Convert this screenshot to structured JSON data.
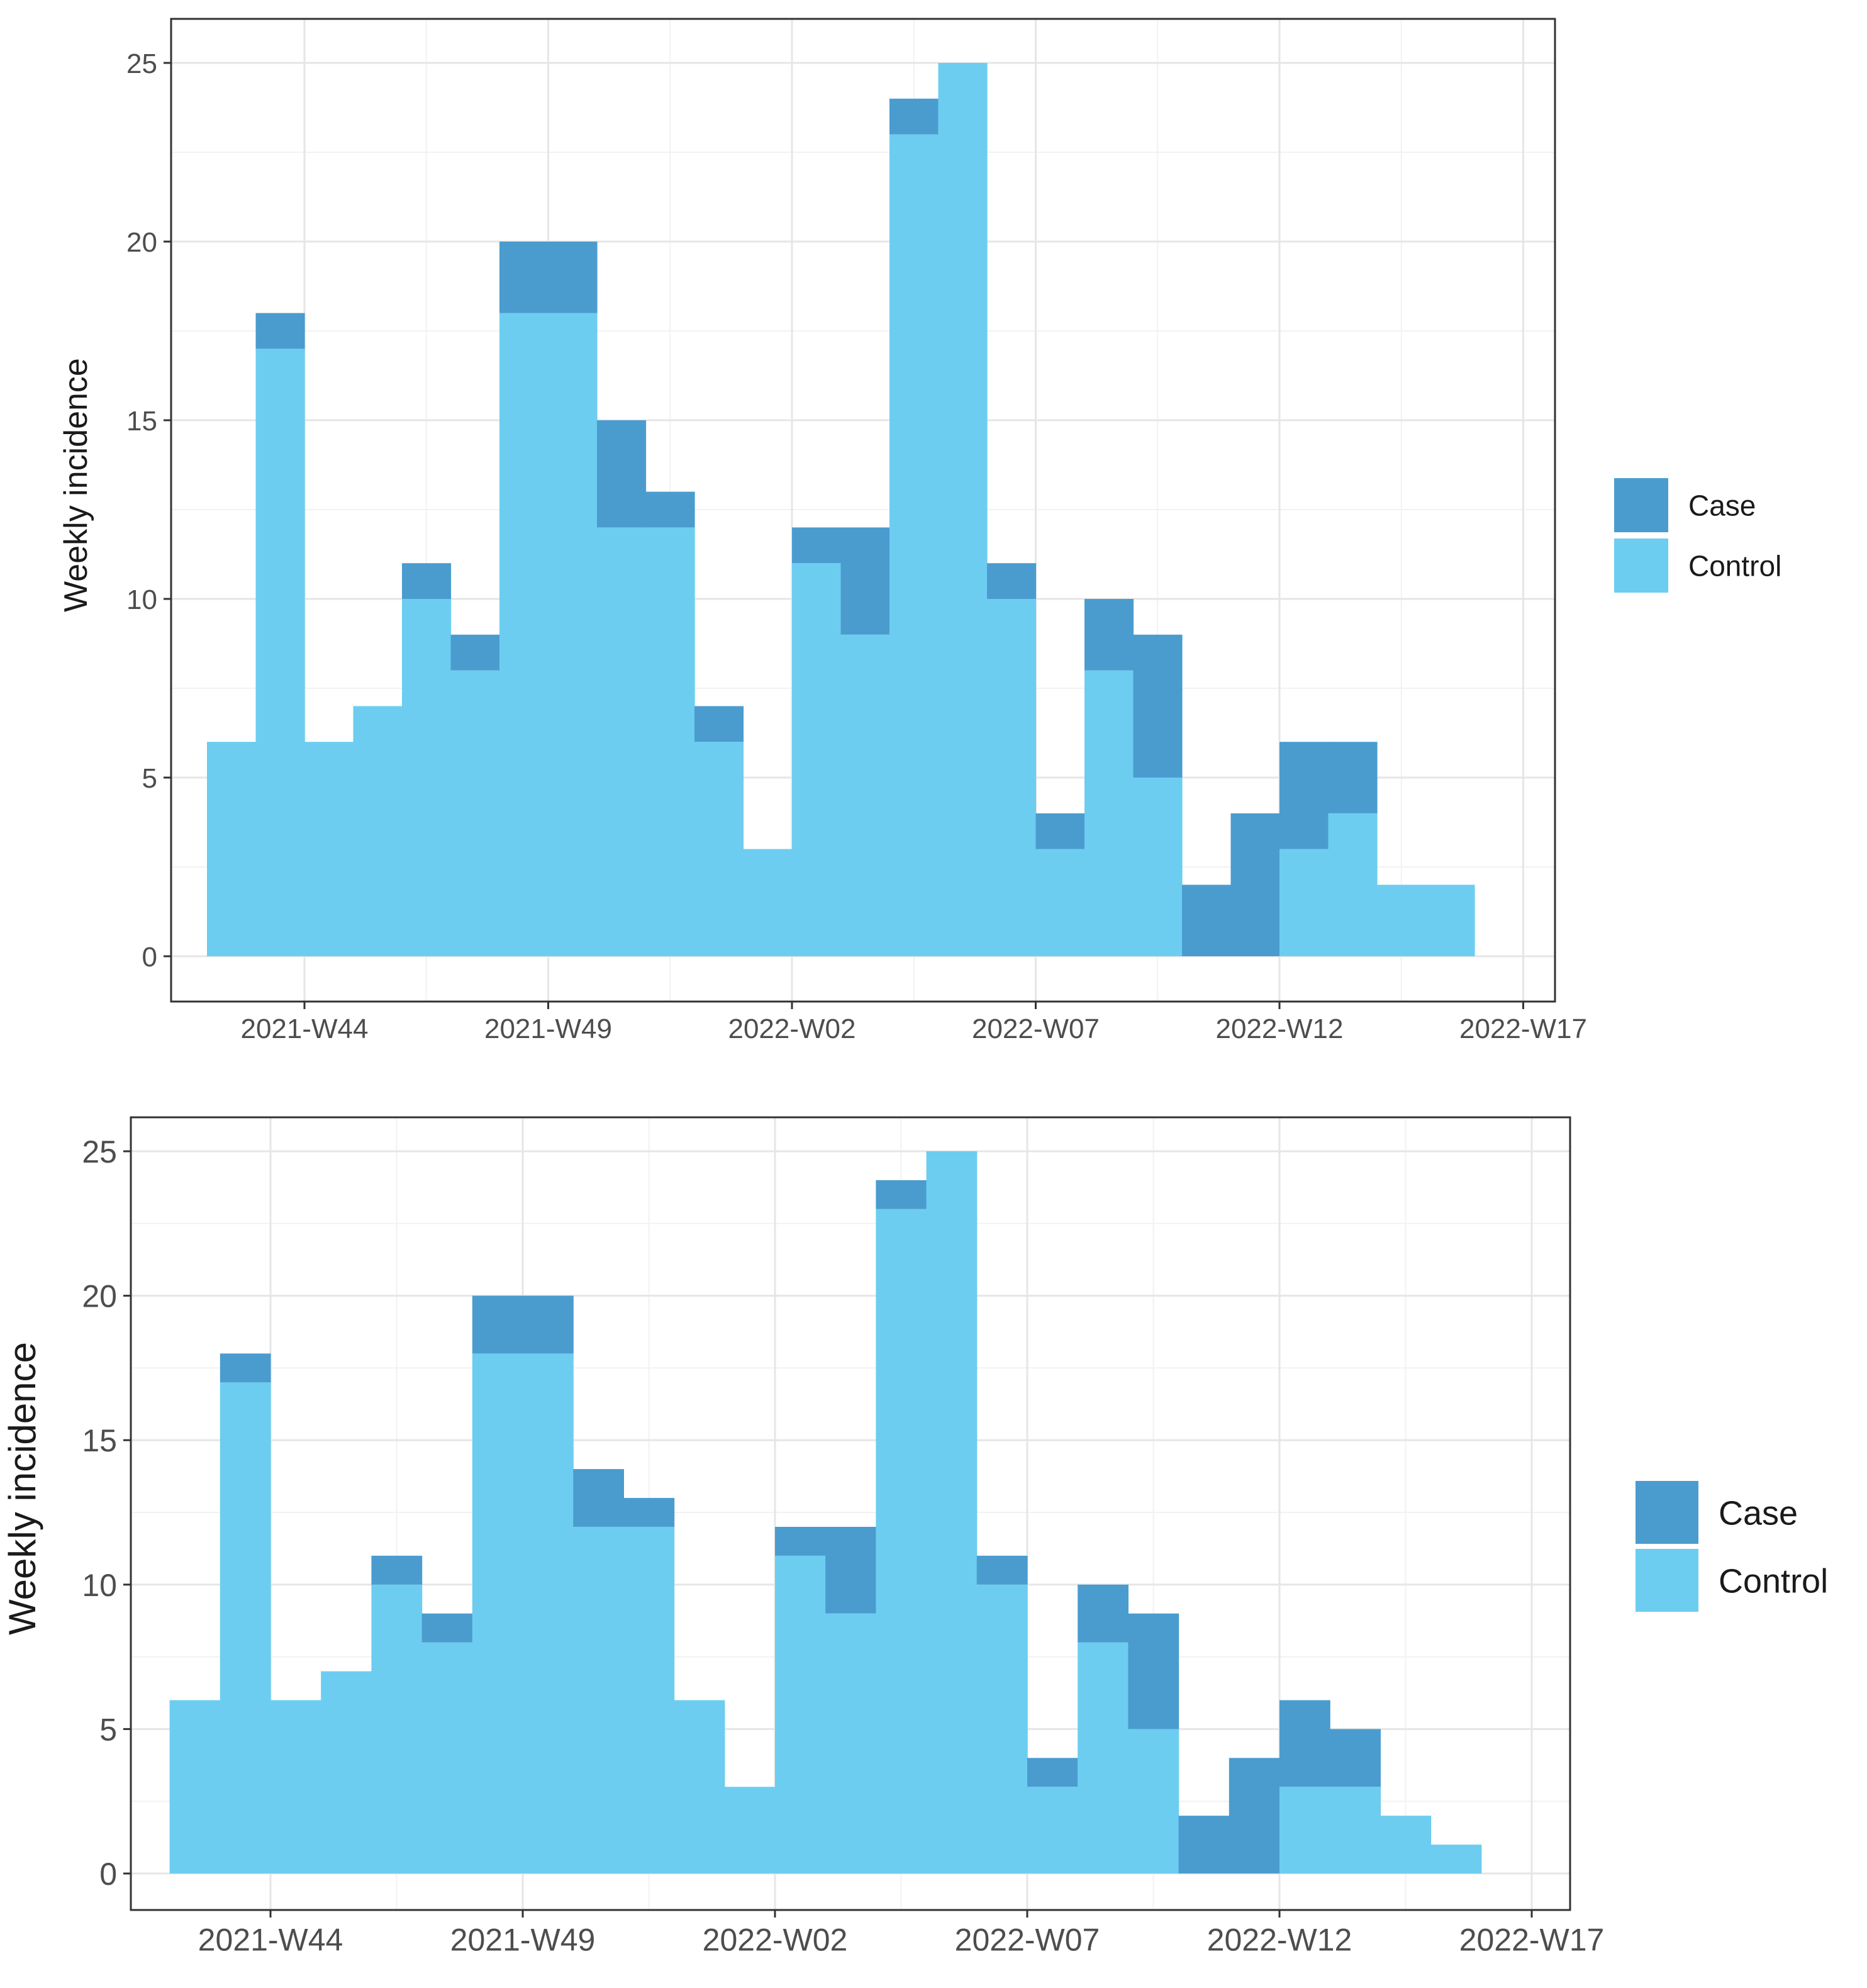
{
  "chart_data": [
    {
      "type": "bar",
      "stacked": true,
      "title": "",
      "xlabel": "",
      "ylabel": "Weekly incidence",
      "ylim": [
        0,
        25
      ],
      "yticks": [
        0,
        5,
        10,
        15,
        20,
        25
      ],
      "xticks": [
        {
          "label": "2021-W44",
          "week": 0
        },
        {
          "label": "2021-W49",
          "week": 5
        },
        {
          "label": "2022-W02",
          "week": 10
        },
        {
          "label": "2022-W07",
          "week": 15
        },
        {
          "label": "2022-W12",
          "week": 20
        },
        {
          "label": "2022-W17",
          "week": 25
        }
      ],
      "week_offsets": [
        -1.5,
        -0.5,
        0.5,
        1.5,
        2.5,
        3.5,
        4.5,
        5.5,
        6.5,
        7.5,
        8.5,
        9.5,
        10.5,
        11.5,
        12.5,
        13.5,
        14.5,
        15.5,
        16.5,
        17.5,
        18.5,
        19.5,
        20.5,
        21.5,
        22.5,
        23.5
      ],
      "series": [
        {
          "name": "Control",
          "values": [
            6,
            17,
            6,
            7,
            10,
            8,
            18,
            18,
            12,
            12,
            6,
            3,
            11,
            9,
            23,
            25,
            10,
            3,
            8,
            5,
            0,
            0,
            3,
            4,
            2,
            2
          ]
        },
        {
          "name": "Case",
          "values": [
            0,
            1,
            0,
            0,
            1,
            1,
            2,
            2,
            3,
            1,
            1,
            0,
            1,
            3,
            1,
            0,
            1,
            1,
            2,
            4,
            2,
            4,
            3,
            2,
            0,
            0
          ]
        }
      ],
      "legend": {
        "position": "right",
        "title": "",
        "entries": [
          "Case",
          "Control"
        ]
      }
    },
    {
      "type": "bar",
      "stacked": true,
      "title": "",
      "xlabel": "",
      "ylabel": "Weekly incidence",
      "ylim": [
        0,
        25
      ],
      "yticks": [
        0,
        5,
        10,
        15,
        20,
        25
      ],
      "xticks": [
        {
          "label": "2021-W44",
          "week": 0
        },
        {
          "label": "2021-W49",
          "week": 5
        },
        {
          "label": "2022-W02",
          "week": 10
        },
        {
          "label": "2022-W07",
          "week": 15
        },
        {
          "label": "2022-W12",
          "week": 20
        },
        {
          "label": "2022-W17",
          "week": 25
        }
      ],
      "week_offsets": [
        -1.5,
        -0.5,
        0.5,
        1.5,
        2.5,
        3.5,
        4.5,
        5.5,
        6.5,
        7.5,
        8.5,
        9.5,
        10.5,
        11.5,
        12.5,
        13.5,
        14.5,
        15.5,
        16.5,
        17.5,
        18.5,
        19.5,
        20.5,
        21.5,
        22.5,
        23.5
      ],
      "series": [
        {
          "name": "Control",
          "values": [
            6,
            17,
            6,
            7,
            10,
            8,
            18,
            18,
            12,
            12,
            6,
            3,
            11,
            9,
            23,
            25,
            10,
            3,
            8,
            5,
            0,
            0,
            3,
            3,
            2,
            1
          ]
        },
        {
          "name": "Case",
          "values": [
            0,
            1,
            0,
            0,
            1,
            1,
            2,
            2,
            2,
            1,
            0,
            0,
            1,
            3,
            1,
            0,
            1,
            1,
            2,
            4,
            2,
            4,
            3,
            2,
            0,
            0
          ]
        }
      ],
      "legend": {
        "position": "right",
        "title": "",
        "entries": [
          "Case",
          "Control"
        ]
      }
    }
  ],
  "colors": {
    "case": "#4a9ccf",
    "control": "#6ccdf0",
    "grid_major": "#e6e6e6",
    "grid_minor": "#f2f2f2",
    "panel_border": "#333333",
    "tick_text": "#4d4d4d"
  }
}
